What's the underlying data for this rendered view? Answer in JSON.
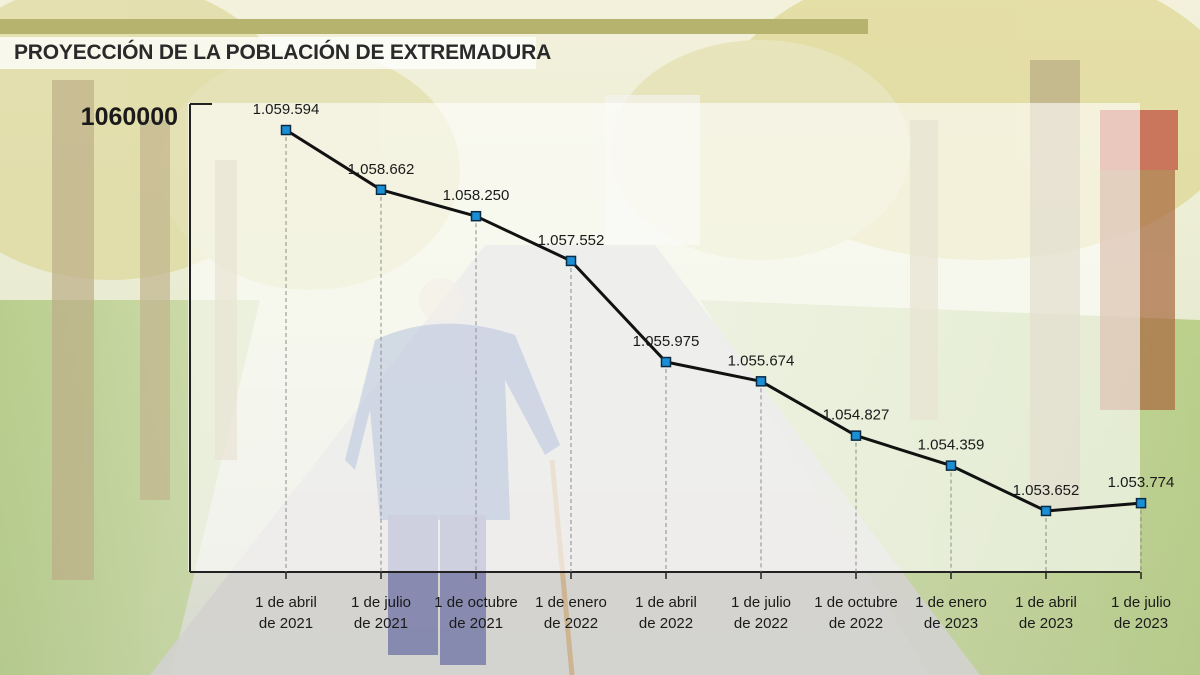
{
  "title": "PROYECCIÓN DE LA POBLACIÓN DE EXTREMADURA",
  "colors": {
    "accent_bar": "#b5b36d",
    "line": "#111111",
    "marker": "#1a8fd6",
    "axis": "#222222"
  },
  "photo": {
    "subject": "elderly-man-with-cane-walking-on-tree-lined-road"
  },
  "chart_data": {
    "type": "line",
    "title": "PROYECCIÓN DE LA POBLACIÓN DE EXTREMADURA",
    "xlabel": "",
    "ylabel": "",
    "y_tick_label": "1060000",
    "ylim": [
      1052700,
      1060000
    ],
    "grid": false,
    "categories": [
      [
        "1 de abril",
        "de 2021"
      ],
      [
        "1 de julio",
        "de 2021"
      ],
      [
        "1 de octubre",
        "de 2021"
      ],
      [
        "1 de enero",
        "de 2022"
      ],
      [
        "1 de abril",
        "de 2022"
      ],
      [
        "1 de julio",
        "de 2022"
      ],
      [
        "1 de octubre",
        "de 2022"
      ],
      [
        "1 de enero",
        "de 2023"
      ],
      [
        "1 de abril",
        "de 2023"
      ],
      [
        "1 de julio",
        "de 2023"
      ]
    ],
    "values": [
      1059594,
      1058662,
      1058250,
      1057552,
      1055975,
      1055674,
      1054827,
      1054359,
      1053652,
      1053774
    ],
    "labels": [
      "1.059.594",
      "1.058.662",
      "1.058.250",
      "1.057.552",
      "1.055.975",
      "1.055.674",
      "1.054.827",
      "1.054.359",
      "1.053.652",
      "1.053.774"
    ]
  }
}
